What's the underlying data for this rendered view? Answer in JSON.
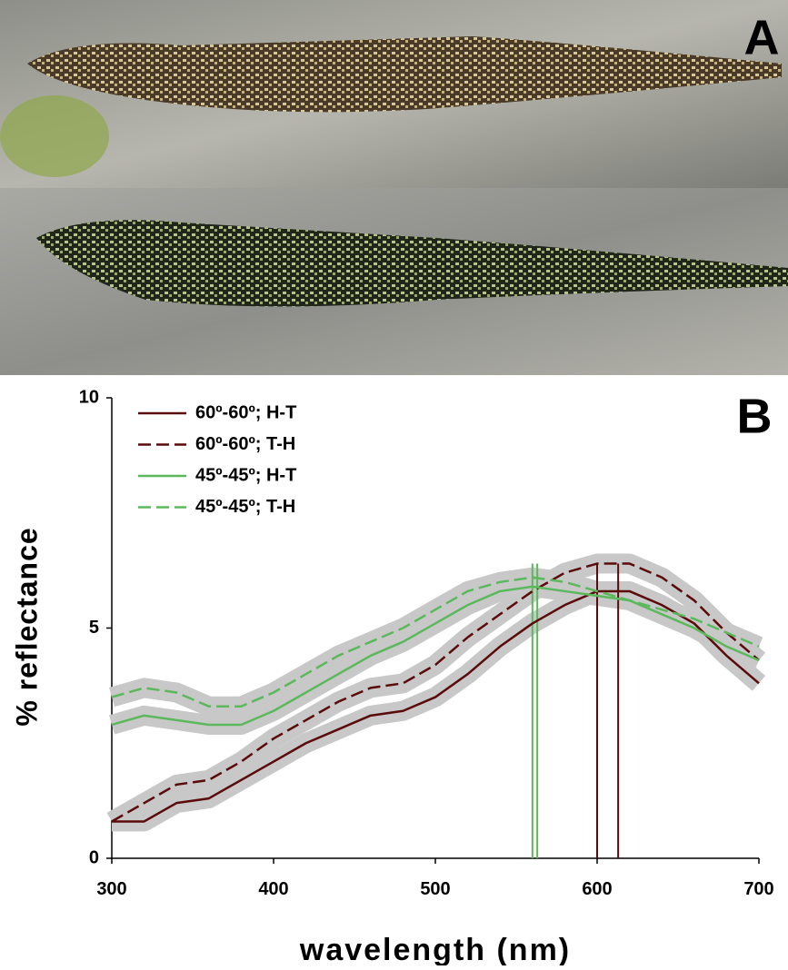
{
  "panel_a": {
    "label": "A"
  },
  "chart_data": {
    "type": "line",
    "panel_label": "B",
    "x_label": "wavelength (nm)",
    "y_label": "% reflectance",
    "x": [
      300,
      320,
      340,
      360,
      380,
      400,
      420,
      440,
      460,
      480,
      500,
      520,
      540,
      560,
      580,
      600,
      620,
      640,
      660,
      680,
      700
    ],
    "series": [
      {
        "name": "60º-60º; H-T",
        "color": "#5a0a0a",
        "dash": false,
        "values": [
          0.8,
          0.8,
          1.2,
          1.3,
          1.7,
          2.1,
          2.5,
          2.8,
          3.1,
          3.2,
          3.5,
          4.0,
          4.6,
          5.1,
          5.5,
          5.8,
          5.8,
          5.5,
          5.1,
          4.4,
          3.8
        ]
      },
      {
        "name": "60º-60º; T-H",
        "color": "#5a0a0a",
        "dash": true,
        "values": [
          0.8,
          1.2,
          1.6,
          1.7,
          2.1,
          2.6,
          3.0,
          3.4,
          3.7,
          3.8,
          4.2,
          4.8,
          5.3,
          5.8,
          6.2,
          6.4,
          6.4,
          6.1,
          5.6,
          4.9,
          4.3
        ]
      },
      {
        "name": "45º-45º; H-T",
        "color": "#5cb85c",
        "dash": false,
        "values": [
          2.9,
          3.1,
          3.0,
          2.9,
          2.9,
          3.2,
          3.6,
          4.0,
          4.4,
          4.7,
          5.1,
          5.5,
          5.8,
          5.9,
          5.8,
          5.7,
          5.6,
          5.3,
          5.0,
          4.6,
          4.3
        ]
      },
      {
        "name": "45º-45º; T-H",
        "color": "#5cb85c",
        "dash": true,
        "values": [
          3.5,
          3.7,
          3.6,
          3.3,
          3.3,
          3.6,
          4.0,
          4.4,
          4.7,
          5.0,
          5.4,
          5.8,
          6.0,
          6.1,
          6.0,
          5.8,
          5.6,
          5.4,
          5.2,
          4.9,
          4.6
        ]
      }
    ],
    "peak_lines": [
      {
        "x": 600,
        "color": "#5a0a0a"
      },
      {
        "x": 613,
        "color": "#5a0a0a"
      },
      {
        "x": 560,
        "color": "#5cb85c"
      },
      {
        "x": 563,
        "color": "#5cb85c"
      }
    ],
    "xlim": [
      300,
      700
    ],
    "xticks": [
      300,
      400,
      500,
      600,
      700
    ],
    "ylim": [
      0,
      10
    ],
    "yticks": [
      0,
      5,
      10
    ]
  }
}
